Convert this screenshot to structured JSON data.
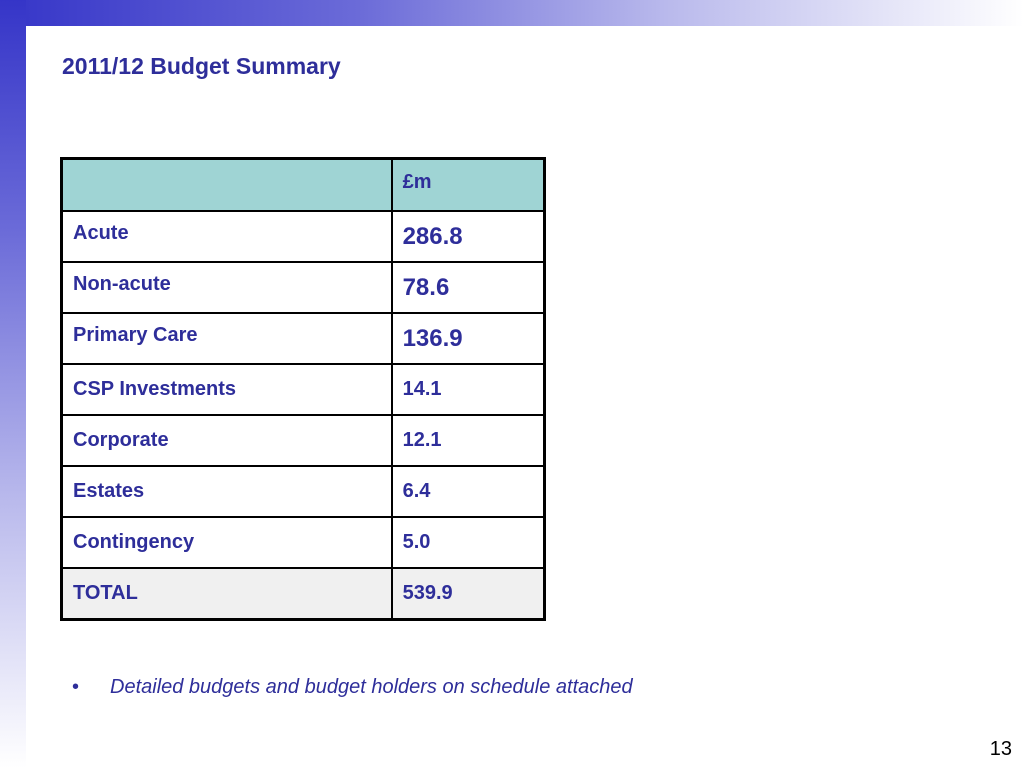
{
  "slide": {
    "title": "2011/12 Budget Summary",
    "page_number": "13"
  },
  "table": {
    "header": {
      "label": "",
      "value": "£m"
    },
    "rows": [
      {
        "label": "Acute",
        "value": "286.8"
      },
      {
        "label": "Non-acute",
        "value": "78.6"
      },
      {
        "label": "Primary Care",
        "value": "136.9"
      },
      {
        "label": "CSP Investments",
        "value": "14.1"
      },
      {
        "label": "Corporate",
        "value": "12.1"
      },
      {
        "label": "Estates",
        "value": "6.4"
      },
      {
        "label": "Contingency",
        "value": "5.0"
      }
    ],
    "total": {
      "label": "TOTAL",
      "value": "539.9"
    }
  },
  "bullets": [
    {
      "symbol": "•",
      "text": "Detailed budgets and budget holders on schedule attached"
    }
  ],
  "colors": {
    "text": "#2e2e9a",
    "header_fill": "#9fd4d4",
    "total_fill": "#f0f0f0",
    "gradient_start": "#3535c8"
  }
}
